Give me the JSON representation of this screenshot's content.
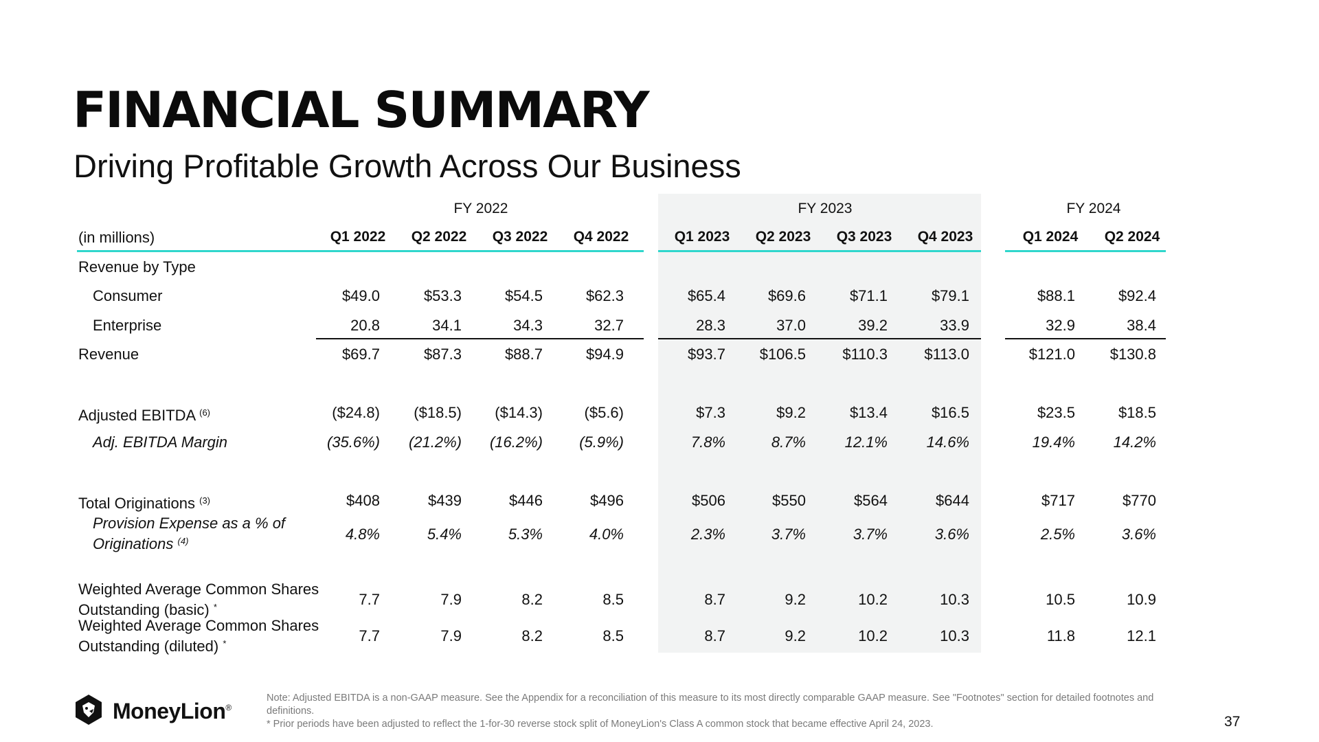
{
  "title": "FINANCIAL SUMMARY",
  "subtitle": "Driving Profitable Growth Across Our Business",
  "fy_headers": [
    "FY 2022",
    "FY 2023",
    "FY 2024"
  ],
  "units_label": "(in millions)",
  "quarters": [
    "Q1 2022",
    "Q2 2022",
    "Q3 2022",
    "Q4 2022",
    "Q1 2023",
    "Q2 2023",
    "Q3 2023",
    "Q4 2023",
    "Q1 2024",
    "Q2 2024"
  ],
  "section_revenue_by_type": "Revenue by Type",
  "rows": {
    "consumer": {
      "label": "Consumer",
      "values": [
        "$49.0",
        "$53.3",
        "$54.5",
        "$62.3",
        "$65.4",
        "$69.6",
        "$71.1",
        "$79.1",
        "$88.1",
        "$92.4"
      ]
    },
    "enterprise": {
      "label": "Enterprise",
      "values": [
        "20.8",
        "34.1",
        "34.3",
        "32.7",
        "28.3",
        "37.0",
        "39.2",
        "33.9",
        "32.9",
        "38.4"
      ]
    },
    "revenue": {
      "label": "Revenue",
      "values": [
        "$69.7",
        "$87.3",
        "$88.7",
        "$94.9",
        "$93.7",
        "$106.5",
        "$110.3",
        "$113.0",
        "$121.0",
        "$130.8"
      ]
    },
    "adj_ebitda": {
      "label": "Adjusted EBITDA",
      "note": "(6)",
      "values": [
        "($24.8)",
        "($18.5)",
        "($14.3)",
        "($5.6)",
        "$7.3",
        "$9.2",
        "$13.4",
        "$16.5",
        "$23.5",
        "$18.5"
      ]
    },
    "adj_ebitda_margin": {
      "label": "Adj. EBITDA Margin",
      "values": [
        "(35.6%)",
        "(21.2%)",
        "(16.2%)",
        "(5.9%)",
        "7.8%",
        "8.7%",
        "12.1%",
        "14.6%",
        "19.4%",
        "14.2%"
      ]
    },
    "total_originations": {
      "label": "Total Originations",
      "note": "(3)",
      "values": [
        "$408",
        "$439",
        "$446",
        "$496",
        "$506",
        "$550",
        "$564",
        "$644",
        "$717",
        "$770"
      ]
    },
    "provision_expense": {
      "label_line1": "Provision Expense as a % of",
      "label_line2": "Originations",
      "note": "(4)",
      "values": [
        "4.8%",
        "5.4%",
        "5.3%",
        "4.0%",
        "2.3%",
        "3.7%",
        "3.7%",
        "3.6%",
        "2.5%",
        "3.6%"
      ]
    },
    "shares_basic": {
      "label_line1": "Weighted Average Common Shares",
      "label_line2": "Outstanding (basic)",
      "note": "*",
      "values": [
        "7.7",
        "7.9",
        "8.2",
        "8.5",
        "8.7",
        "9.2",
        "10.2",
        "10.3",
        "10.5",
        "10.9"
      ]
    },
    "shares_diluted": {
      "label_line1": "Weighted Average Common Shares",
      "label_line2": "Outstanding (diluted)",
      "note": "*",
      "values": [
        "7.7",
        "7.9",
        "8.2",
        "8.5",
        "8.7",
        "9.2",
        "10.2",
        "10.3",
        "11.8",
        "12.1"
      ]
    }
  },
  "footnote_line1": "Note: Adjusted EBITDA is a non-GAAP measure. See the Appendix for a reconciliation of this measure to its most directly comparable GAAP measure. See \"Footnotes\" section for detailed footnotes and definitions.",
  "footnote_line2": "* Prior periods have been adjusted to reflect the 1-for-30 reverse stock split of MoneyLion's Class A common stock that became effective April 24, 2023.",
  "logo_text": "MoneyLion",
  "logo_mark": "®",
  "page_number": "37",
  "colors": {
    "accent": "#2fd6cc",
    "shade": "#f2f3f3"
  },
  "icons": {
    "logo": "moneylion-lion-icon"
  }
}
